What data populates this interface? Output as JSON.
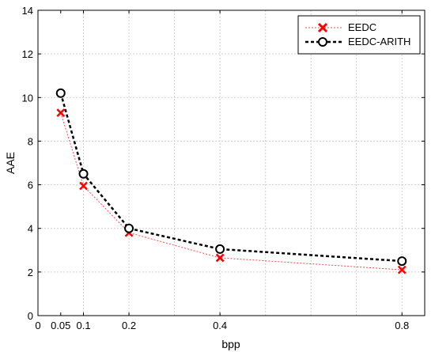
{
  "chart_data": {
    "type": "line",
    "xlabel": "bpp",
    "ylabel": "AAE",
    "xlim": [
      0,
      0.85
    ],
    "ylim": [
      0,
      14
    ],
    "x_ticks": [
      0,
      0.05,
      0.1,
      0.2,
      0.4,
      0.8
    ],
    "x_tick_labels": [
      "0",
      "0.05",
      "0.1",
      "0.2",
      "0.4",
      "0.8"
    ],
    "y_ticks": [
      0,
      2,
      4,
      6,
      8,
      10,
      12,
      14
    ],
    "y_tick_labels": [
      "0",
      "2",
      "4",
      "6",
      "8",
      "10",
      "12",
      "14"
    ],
    "x_grid": [
      0.1,
      0.2,
      0.3,
      0.4,
      0.5,
      0.6,
      0.7,
      0.8
    ],
    "grid": true,
    "legend_position": "top-right",
    "x": [
      0.05,
      0.1,
      0.2,
      0.4,
      0.8
    ],
    "series": [
      {
        "name": "EEDC",
        "values": [
          9.3,
          5.95,
          3.8,
          2.65,
          2.1
        ],
        "color": "#ff0000",
        "marker": "x",
        "line": "dotted"
      },
      {
        "name": "EEDC-ARITH",
        "values": [
          10.2,
          6.5,
          4.0,
          3.05,
          2.5
        ],
        "color": "#000000",
        "marker": "o",
        "line": "dashed"
      }
    ]
  }
}
